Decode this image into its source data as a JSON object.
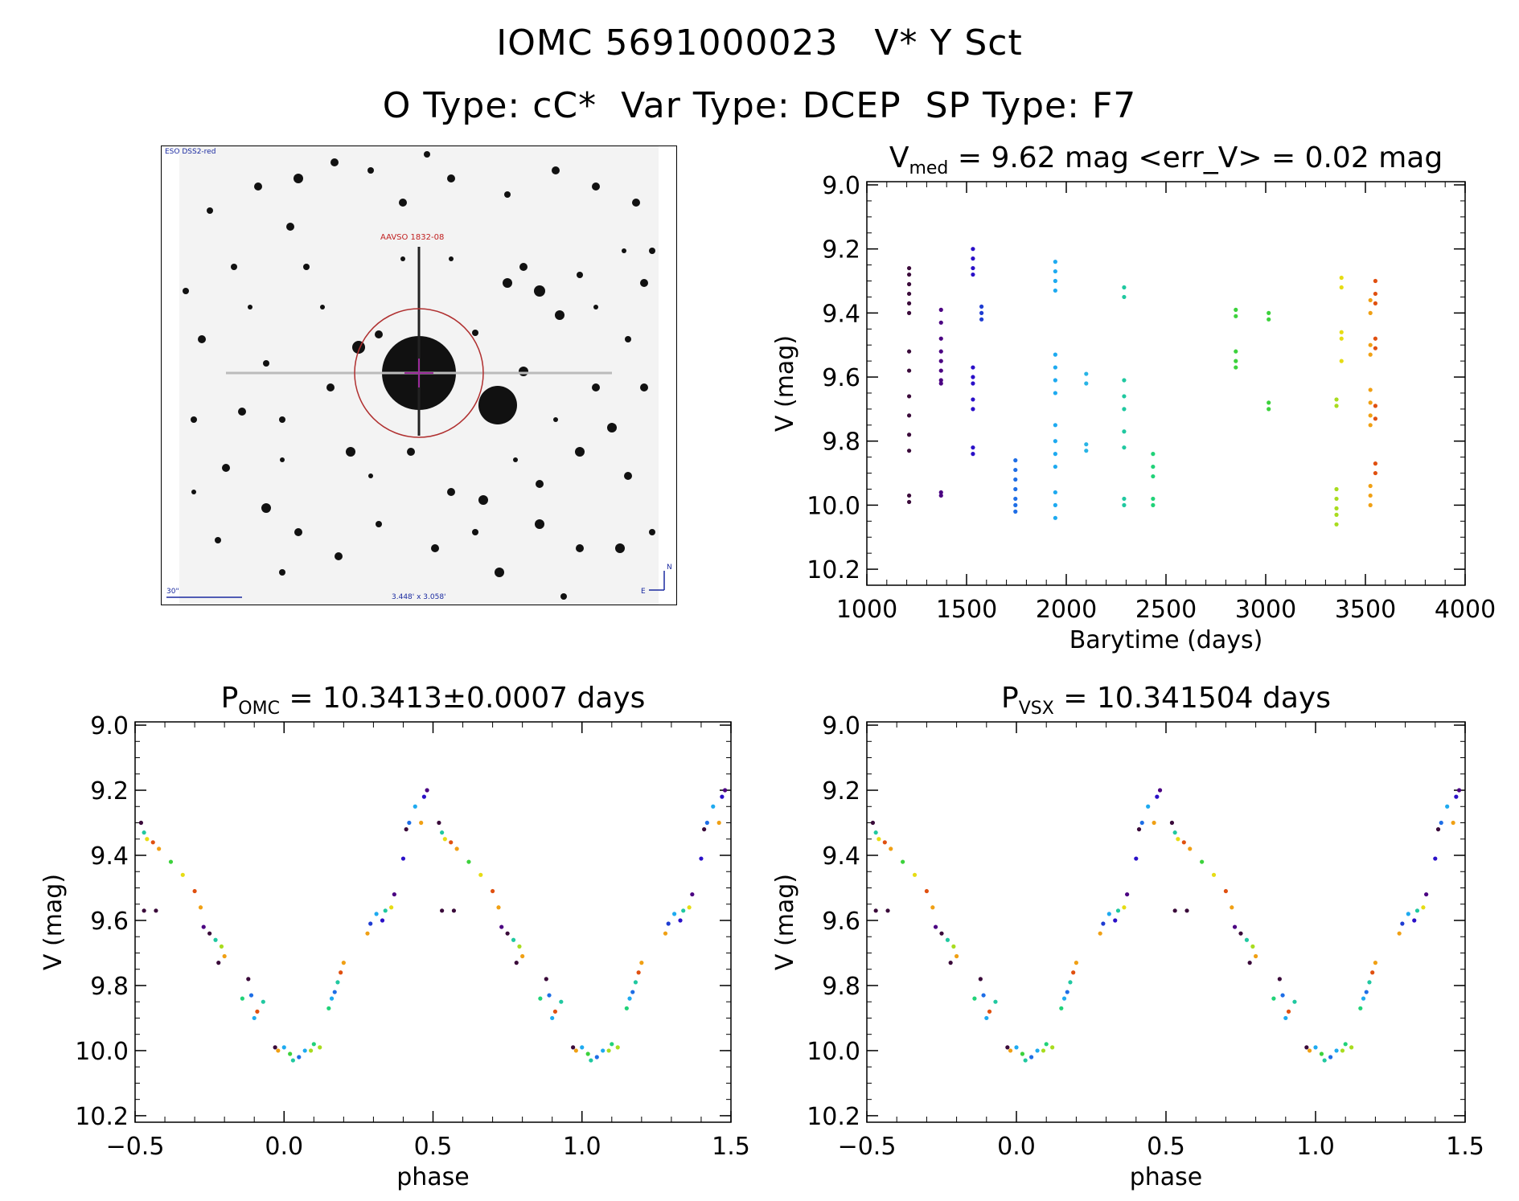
{
  "header": {
    "line1": "IOMC 5691000023   V* Y Sct",
    "line2": "O Type: cC*  Var Type: DCEP  SP Type: F7"
  },
  "image": {
    "survey": "ESO DSS2-red",
    "label": "AAVSO 1832-08",
    "scale": "30\"",
    "fov": "3.448' x 3.058'",
    "north": "N",
    "east": "E",
    "palette": {
      "bg": "#f3f3f3",
      "star": "#111111",
      "circle": "#b03030",
      "cross": "#9a2a9a",
      "text_red": "#c02020",
      "text_blue": "#1a2aa0"
    }
  },
  "chart_data": [
    {
      "type": "scatter",
      "id": "lightcurve",
      "title": {
        "main": "V",
        "sub": "med",
        "rest": " = 9.62 mag <err_V> = 0.02 mag"
      },
      "xlabel": "Barytime (days)",
      "ylabel": "V (mag)",
      "xlim": [
        1000,
        4000
      ],
      "ylim": [
        10.25,
        8.99
      ],
      "xticks": [
        1000,
        1500,
        2000,
        2500,
        3000,
        3500,
        4000
      ],
      "yticks": [
        "9.0",
        "9.2",
        "9.4",
        "9.6",
        "9.8",
        "10.0",
        "10.2"
      ],
      "groups": [
        {
          "x": 1212,
          "y": [
            9.26,
            9.28,
            9.31,
            9.34,
            9.37,
            9.4,
            9.52,
            9.58,
            9.66,
            9.72,
            9.78,
            9.83,
            9.97,
            9.99
          ],
          "color": "#3a0a3a"
        },
        {
          "x": 1372,
          "y": [
            9.39,
            9.43,
            9.48,
            9.52,
            9.55,
            9.58,
            9.61,
            9.62,
            9.96,
            9.97
          ],
          "color": "#4b0082"
        },
        {
          "x": 1532,
          "y": [
            9.2,
            9.23,
            9.26,
            9.28,
            9.57,
            9.6,
            9.62,
            9.67,
            9.7,
            9.82,
            9.84
          ],
          "color": "#2a10c8"
        },
        {
          "x": 1575,
          "y": [
            9.38,
            9.4,
            9.42
          ],
          "color": "#1e3cd2"
        },
        {
          "x": 1745,
          "y": [
            9.86,
            9.89,
            9.92,
            9.95,
            9.98,
            10.0,
            10.02
          ],
          "color": "#1e6ee6"
        },
        {
          "x": 1945,
          "y": [
            9.24,
            9.27,
            9.3,
            9.33,
            9.53,
            9.57,
            9.61,
            9.65,
            9.75,
            9.8,
            9.84,
            9.88,
            9.96,
            10.0,
            10.04
          ],
          "color": "#1eaaf0"
        },
        {
          "x": 2100,
          "y": [
            9.59,
            9.62,
            9.81,
            9.83
          ],
          "color": "#28b4e6"
        },
        {
          "x": 2290,
          "y": [
            9.32,
            9.35,
            9.61,
            9.66,
            9.7,
            9.77,
            9.82,
            9.98,
            10.0
          ],
          "color": "#20c8a0"
        },
        {
          "x": 2435,
          "y": [
            9.84,
            9.88,
            9.91,
            9.98,
            10.0
          ],
          "color": "#20d278"
        },
        {
          "x": 2850,
          "y": [
            9.39,
            9.41,
            9.52,
            9.55,
            9.57
          ],
          "color": "#3cd23c"
        },
        {
          "x": 3015,
          "y": [
            9.4,
            9.42,
            9.68,
            9.7
          ],
          "color": "#3cd23c"
        },
        {
          "x": 3355,
          "y": [
            9.67,
            9.69,
            9.95,
            9.98,
            10.01,
            10.03,
            10.06
          ],
          "color": "#a8dc1e"
        },
        {
          "x": 3380,
          "y": [
            9.29,
            9.32,
            9.46,
            9.48,
            9.55
          ],
          "color": "#e6dc14"
        },
        {
          "x": 3525,
          "y": [
            9.36,
            9.4,
            9.5,
            9.53,
            9.64,
            9.68,
            9.72,
            9.75,
            9.94,
            9.97,
            10.0
          ],
          "color": "#f0a014"
        },
        {
          "x": 3550,
          "y": [
            9.3,
            9.34,
            9.37,
            9.48,
            9.51,
            9.69,
            9.73,
            9.87,
            9.9
          ],
          "color": "#e05010"
        }
      ]
    },
    {
      "type": "scatter",
      "id": "phase_omc",
      "title": {
        "main": "P",
        "sub": "OMC",
        "rest": " = 10.3413±0.0007 days"
      },
      "xlabel": "phase",
      "ylabel": "V (mag)",
      "xlim": [
        -0.5,
        1.5
      ],
      "ylim": [
        10.22,
        8.99
      ],
      "xticks": [
        "−0.5",
        "0.0",
        "0.5",
        "1.0",
        "1.5"
      ],
      "yticks": [
        "9.0",
        "9.2",
        "9.4",
        "9.6",
        "9.8",
        "10.0",
        "10.2"
      ],
      "period_points": [
        {
          "x": 0.0,
          "y": 9.99,
          "color": "#1eaaf0"
        },
        {
          "x": 0.02,
          "y": 10.01,
          "color": "#3cd23c"
        },
        {
          "x": 0.03,
          "y": 10.03,
          "color": "#20c8a0"
        },
        {
          "x": 0.05,
          "y": 10.02,
          "color": "#1e6ee6"
        },
        {
          "x": -0.03,
          "y": 9.99,
          "color": "#3a0a3a"
        },
        {
          "x": -0.02,
          "y": 10.0,
          "color": "#f0a014"
        },
        {
          "x": 0.07,
          "y": 10.0,
          "color": "#1eaaf0"
        },
        {
          "x": 0.09,
          "y": 10.0,
          "color": "#a8dc1e"
        },
        {
          "x": 0.1,
          "y": 9.98,
          "color": "#20d278"
        },
        {
          "x": 0.12,
          "y": 9.99,
          "color": "#a8dc1e"
        },
        {
          "x": 0.15,
          "y": 9.87,
          "color": "#20d278"
        },
        {
          "x": 0.16,
          "y": 9.84,
          "color": "#1eaaf0"
        },
        {
          "x": 0.17,
          "y": 9.82,
          "color": "#1e6ee6"
        },
        {
          "x": 0.18,
          "y": 9.79,
          "color": "#20c8a0"
        },
        {
          "x": 0.19,
          "y": 9.76,
          "color": "#e05010"
        },
        {
          "x": 0.2,
          "y": 9.73,
          "color": "#f0a014"
        },
        {
          "x": 0.28,
          "y": 9.64,
          "color": "#f0a014"
        },
        {
          "x": 0.29,
          "y": 9.61,
          "color": "#1e3cd2"
        },
        {
          "x": 0.31,
          "y": 9.58,
          "color": "#1eaaf0"
        },
        {
          "x": 0.33,
          "y": 9.6,
          "color": "#2a10c8"
        },
        {
          "x": 0.34,
          "y": 9.57,
          "color": "#20c8a0"
        },
        {
          "x": 0.36,
          "y": 9.56,
          "color": "#e6dc14"
        },
        {
          "x": 0.37,
          "y": 9.52,
          "color": "#4b0082"
        },
        {
          "x": 0.4,
          "y": 9.41,
          "color": "#2a10c8"
        },
        {
          "x": 0.41,
          "y": 9.32,
          "color": "#3a0a3a"
        },
        {
          "x": 0.42,
          "y": 9.3,
          "color": "#1e6ee6"
        },
        {
          "x": 0.44,
          "y": 9.25,
          "color": "#1eaaf0"
        },
        {
          "x": 0.46,
          "y": 9.3,
          "color": "#f0a014"
        },
        {
          "x": 0.47,
          "y": 9.22,
          "color": "#2a10c8"
        },
        {
          "x": 0.48,
          "y": 9.2,
          "color": "#4b0082"
        },
        {
          "x": 0.52,
          "y": 9.3,
          "color": "#3a0a3a"
        },
        {
          "x": 0.53,
          "y": 9.33,
          "color": "#20c8a0"
        },
        {
          "x": 0.54,
          "y": 9.35,
          "color": "#e6dc14"
        },
        {
          "x": 0.56,
          "y": 9.36,
          "color": "#e05010"
        },
        {
          "x": 0.58,
          "y": 9.38,
          "color": "#f0a014"
        },
        {
          "x": 0.53,
          "y": 9.57,
          "color": "#3a0a3a"
        },
        {
          "x": 0.57,
          "y": 9.57,
          "color": "#3a0a3a"
        },
        {
          "x": 0.62,
          "y": 9.42,
          "color": "#3cd23c"
        },
        {
          "x": 0.66,
          "y": 9.46,
          "color": "#e6dc14"
        },
        {
          "x": 0.7,
          "y": 9.51,
          "color": "#e05010"
        },
        {
          "x": 0.72,
          "y": 9.56,
          "color": "#f0a014"
        },
        {
          "x": 0.73,
          "y": 9.62,
          "color": "#4b0082"
        },
        {
          "x": 0.75,
          "y": 9.64,
          "color": "#3a0a3a"
        },
        {
          "x": 0.77,
          "y": 9.66,
          "color": "#20c8a0"
        },
        {
          "x": 0.79,
          "y": 9.68,
          "color": "#a8dc1e"
        },
        {
          "x": 0.8,
          "y": 9.71,
          "color": "#f0a014"
        },
        {
          "x": 0.78,
          "y": 9.73,
          "color": "#3a0a3a"
        },
        {
          "x": 0.88,
          "y": 9.78,
          "color": "#3a0a3a"
        },
        {
          "x": 0.86,
          "y": 9.84,
          "color": "#20d278"
        },
        {
          "x": 0.89,
          "y": 9.83,
          "color": "#1e6ee6"
        },
        {
          "x": 0.91,
          "y": 9.88,
          "color": "#e05010"
        },
        {
          "x": 0.9,
          "y": 9.9,
          "color": "#1eaaf0"
        },
        {
          "x": 0.93,
          "y": 9.85,
          "color": "#20c8a0"
        }
      ]
    },
    {
      "type": "scatter",
      "id": "phase_vsx",
      "title": {
        "main": "P",
        "sub": "VSX",
        "rest": " = 10.341504 days"
      },
      "xlabel": "phase",
      "ylabel": "V (mag)",
      "xlim": [
        -0.5,
        1.5
      ],
      "ylim": [
        10.22,
        8.99
      ],
      "xticks": [
        "−0.5",
        "0.0",
        "0.5",
        "1.0",
        "1.5"
      ],
      "yticks": [
        "9.0",
        "9.2",
        "9.4",
        "9.6",
        "9.8",
        "10.0",
        "10.2"
      ],
      "reuse_points_from": "phase_omc"
    }
  ]
}
